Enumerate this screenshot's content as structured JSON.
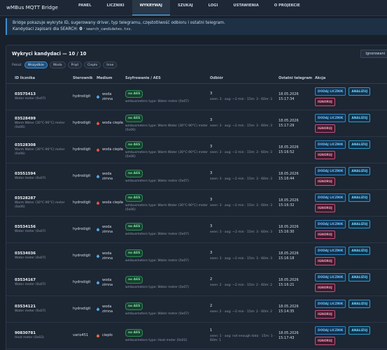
{
  "nav": {
    "brand": "wMBus MQTT Bridge",
    "tabs": [
      "PANEL",
      "LICZNIKI",
      "WYKRYWAJ",
      "SZUKAJ",
      "LOGI",
      "USTAWIENIA",
      "O PROJEKCIE"
    ],
    "active": 2
  },
  "info": {
    "line1": "Bridge pokazuje wykryte ID, sugerowany driver, typ telegramu, częstotliwość odbioru i ostatni telegram.",
    "label": "Kandydaci zapisani dla SEARCH:",
    "count": 0,
    "sep": "·",
    "file": "search_candidates.tsv",
    "end": "."
  },
  "card": {
    "title": "Wykryci kandydaci — 10 / 10",
    "button": "Ignorowani",
    "filter_label": "Pokaż:",
    "filters": [
      "Wszystkie",
      "Woda",
      "Prąd",
      "Ciepło",
      "Inne"
    ],
    "active_filter": 0
  },
  "table": {
    "headers": [
      "ID licznika",
      "Sterownik",
      "Medium",
      "Szyfrowanie / AES",
      "Odbiór",
      "Ostatni telegram",
      "Akcja"
    ],
    "actions": [
      "DODAJ LICZNIK",
      "ANALIZUJ",
      "IGNORUJ"
    ],
    "rows": [
      {
        "id": "03575413",
        "type": "Water meter (0x07)",
        "driver": "hydrodigit",
        "medium": "woda zimna",
        "icon_color": "#4ba8e8",
        "aes": "no AES",
        "aes_note": "wmbusmeters type: Water meter (0x07)",
        "count": 3,
        "seen": "seen: 3 · avg: ~2 min · 15m: 3 · 60m: 3",
        "last": "18.05.2026 15:17:34"
      },
      {
        "id": "03528499",
        "type": "Warm Water (30°C-90°C) meter (0x06)",
        "driver": "hydrodigit",
        "medium": "woda ciepła",
        "icon_color": "#e2553c",
        "aes": "no AES",
        "aes_note": "wmbusmeters type: Warm Water (30°C-90°C) meter (0x06)",
        "count": 3,
        "seen": "seen: 3 · avg: ~2 min · 15m: 3 · 60m: 3",
        "last": "18.05.2026 15:17:29"
      },
      {
        "id": "03528308",
        "type": "Warm Water (30°C-90°C) meter (0x06)",
        "driver": "hydrodigit",
        "medium": "woda ciepła",
        "icon_color": "#e2553c",
        "aes": "no AES",
        "aes_note": "wmbusmeters type: Warm Water (30°C-90°C) meter (0x06)",
        "count": 3,
        "seen": "seen: 3 · avg: ~2 min · 15m: 3 · 60m: 3",
        "last": "18.05.2026 15:16:52"
      },
      {
        "id": "03551594",
        "type": "Water meter (0x07)",
        "driver": "hydrodigit",
        "medium": "woda zimna",
        "icon_color": "#4ba8e8",
        "aes": "no AES",
        "aes_note": "wmbusmeters type: Water meter (0x07)",
        "count": 3,
        "seen": "seen: 3 · avg: ~2 min · 15m: 3 · 60m: 3",
        "last": "18.05.2026 15:16:44"
      },
      {
        "id": "03528287",
        "type": "Warm Water (30°C-90°C) meter (0x06)",
        "driver": "hydrodigit",
        "medium": "woda ciepła",
        "icon_color": "#e2553c",
        "aes": "no AES",
        "aes_note": "wmbusmeters type: Warm Water (30°C-90°C) meter (0x06)",
        "count": 3,
        "seen": "seen: 3 · avg: ~2 min · 15m: 3 · 60m: 3",
        "last": "18.05.2026 15:16:32"
      },
      {
        "id": "03534156",
        "type": "Water meter (0x07)",
        "driver": "hydrodigit",
        "medium": "woda zimna",
        "icon_color": "#4ba8e8",
        "aes": "no AES",
        "aes_note": "wmbusmeters type: Water meter (0x07)",
        "count": 3,
        "seen": "seen: 3 · avg: ~2 min · 15m: 3 · 60m: 3",
        "last": "18.05.2026 15:16:30"
      },
      {
        "id": "03534036",
        "type": "Water meter (0x07)",
        "driver": "hydrodigit",
        "medium": "woda zimna",
        "icon_color": "#4ba8e8",
        "aes": "no AES",
        "aes_note": "wmbusmeters type: Water meter (0x07)",
        "count": 3,
        "seen": "seen: 3 · avg: ~2 min · 15m: 3 · 60m: 3",
        "last": "18.05.2026 15:16:18"
      },
      {
        "id": "03534167",
        "type": "Water meter (0x07)",
        "driver": "hydrodigit",
        "medium": "woda zimna",
        "icon_color": "#4ba8e8",
        "aes": "no AES",
        "aes_note": "wmbusmeters type: Water meter (0x07)",
        "count": 2,
        "seen": "seen: 2 · avg: ~2 min · 15m: 2 · 60m: 2",
        "last": "18.05.2026 15:16:21"
      },
      {
        "id": "03534121",
        "type": "Water meter (0x07)",
        "driver": "hydrodigit",
        "medium": "woda zimna",
        "icon_color": "#4ba8e8",
        "aes": "no AES",
        "aes_note": "wmbusmeters type: Water meter (0x07)",
        "count": 2,
        "seen": "seen: 2 · avg: ~2 min · 15m: 2 · 60m: 2",
        "last": "18.05.2026 15:14:35"
      },
      {
        "id": "90830781",
        "type": "Heat meter (0x03)",
        "driver": "vario451",
        "medium": "ciepło",
        "icon_color": "#ef6a3a",
        "aes": "no AES",
        "aes_note": "wmbusmeters type: Heat meter (0x03)",
        "count": 1,
        "seen": "seen: 1 · avg: not enough data · 15m: 1 · 60m: 1",
        "last": "18.05.2026 15:17:43"
      }
    ]
  }
}
